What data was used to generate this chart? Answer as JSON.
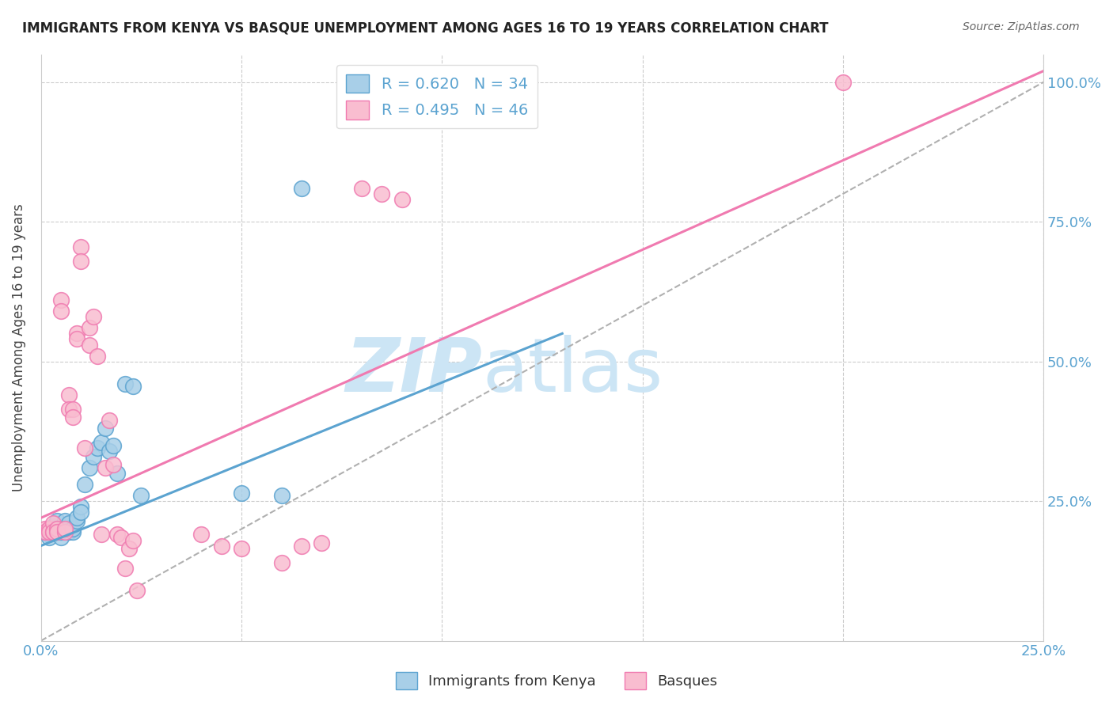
{
  "title": "IMMIGRANTS FROM KENYA VS BASQUE UNEMPLOYMENT AMONG AGES 16 TO 19 YEARS CORRELATION CHART",
  "source": "Source: ZipAtlas.com",
  "ylabel": "Unemployment Among Ages 16 to 19 years",
  "legend1_label": "R = 0.620   N = 34",
  "legend2_label": "R = 0.495   N = 46",
  "legend_bottom1": "Immigrants from Kenya",
  "legend_bottom2": "Basques",
  "blue_color": "#a8cfe8",
  "pink_color": "#f9bdd0",
  "blue_edge_color": "#5ba3d0",
  "pink_edge_color": "#f07ab0",
  "blue_line_color": "#5ba3d0",
  "pink_line_color": "#f07ab0",
  "title_color": "#222222",
  "axis_label_color": "#5ba3d0",
  "blue_line_x0": 0.0,
  "blue_line_y0": 0.17,
  "blue_line_x1": 0.13,
  "blue_line_y1": 0.55,
  "pink_line_x0": 0.0,
  "pink_line_y0": 0.22,
  "pink_line_x1": 0.25,
  "pink_line_y1": 1.02,
  "dash_line_x0": 0.0,
  "dash_line_y0": 0.0,
  "dash_line_x1": 0.25,
  "dash_line_y1": 1.0,
  "blue_scatter_x": [
    0.001,
    0.002,
    0.002,
    0.003,
    0.003,
    0.004,
    0.004,
    0.005,
    0.005,
    0.006,
    0.006,
    0.007,
    0.007,
    0.008,
    0.008,
    0.009,
    0.009,
    0.01,
    0.01,
    0.011,
    0.012,
    0.013,
    0.014,
    0.015,
    0.016,
    0.017,
    0.018,
    0.019,
    0.021,
    0.023,
    0.025,
    0.05,
    0.06,
    0.065
  ],
  "blue_scatter_y": [
    0.195,
    0.19,
    0.185,
    0.205,
    0.2,
    0.215,
    0.195,
    0.185,
    0.195,
    0.2,
    0.215,
    0.195,
    0.21,
    0.195,
    0.2,
    0.215,
    0.22,
    0.24,
    0.23,
    0.28,
    0.31,
    0.33,
    0.345,
    0.355,
    0.38,
    0.34,
    0.35,
    0.3,
    0.46,
    0.455,
    0.26,
    0.265,
    0.26,
    0.81
  ],
  "pink_scatter_x": [
    0.001,
    0.001,
    0.002,
    0.002,
    0.003,
    0.003,
    0.003,
    0.004,
    0.004,
    0.005,
    0.005,
    0.006,
    0.006,
    0.007,
    0.007,
    0.008,
    0.008,
    0.009,
    0.009,
    0.01,
    0.01,
    0.011,
    0.012,
    0.012,
    0.013,
    0.014,
    0.015,
    0.016,
    0.017,
    0.018,
    0.019,
    0.02,
    0.021,
    0.022,
    0.023,
    0.024,
    0.04,
    0.045,
    0.05,
    0.06,
    0.065,
    0.07,
    0.08,
    0.085,
    0.09,
    0.2
  ],
  "pink_scatter_y": [
    0.2,
    0.195,
    0.2,
    0.195,
    0.195,
    0.21,
    0.195,
    0.2,
    0.195,
    0.61,
    0.59,
    0.195,
    0.2,
    0.44,
    0.415,
    0.415,
    0.4,
    0.55,
    0.54,
    0.705,
    0.68,
    0.345,
    0.56,
    0.53,
    0.58,
    0.51,
    0.19,
    0.31,
    0.395,
    0.315,
    0.19,
    0.185,
    0.13,
    0.165,
    0.18,
    0.09,
    0.19,
    0.17,
    0.165,
    0.14,
    0.17,
    0.175,
    0.81,
    0.8,
    0.79,
    1.0
  ],
  "xmin": 0.0,
  "xmax": 0.25,
  "ymin": 0.0,
  "ymax": 1.05,
  "watermark_zip": "ZIP",
  "watermark_atlas": "atlas",
  "watermark_color": "#cce5f5"
}
